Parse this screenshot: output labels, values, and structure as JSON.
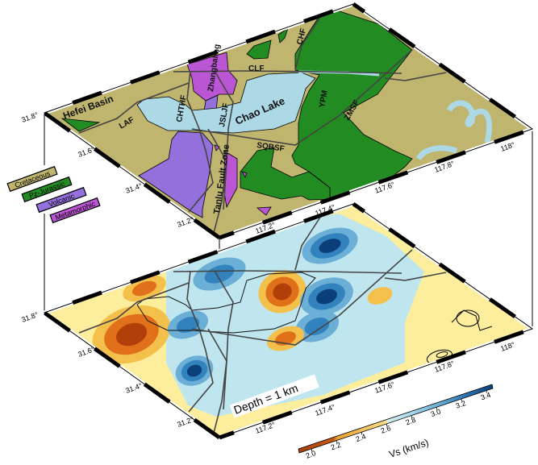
{
  "geology_map": {
    "labels": {
      "hefei_basin": "Hefei Basin",
      "laf": "LAF",
      "chthf": "CHTHF",
      "zhangbaling": "Zhangbaling",
      "jsljf": "JSLJF",
      "chao_lake": "Chao Lake",
      "clf": "CLF",
      "ypm": "YPM",
      "zmsf": "ZMSF",
      "chf": "CHF",
      "sqbsf": "SQBSF",
      "tanlu": "Tanlu Fault Zone"
    },
    "legend": [
      {
        "label": "Cretaceous",
        "color": "#bfb56e"
      },
      {
        "label": "Pz-Jurassic",
        "color": "#228b22"
      },
      {
        "label": "Volcanic",
        "color": "#9370db"
      },
      {
        "label": "Metamorphic",
        "color": "#ba55d3"
      }
    ],
    "lake_color": "#add8e6"
  },
  "axes": {
    "lat_ticks": [
      "31.2°",
      "31.4°",
      "31.6°",
      "31.8°"
    ],
    "lon_ticks": [
      "117.2°",
      "117.4°",
      "117.6°",
      "117.8°",
      "118°"
    ]
  },
  "velocity_map": {
    "depth_label": "Depth = 1 km",
    "colorbar": {
      "label": "Vs (km/s)",
      "ticks": [
        "2.0",
        "2.2",
        "2.4",
        "2.6",
        "2.8",
        "3.0",
        "3.2",
        "3.4"
      ],
      "range": [
        1.9,
        3.45
      ],
      "colors": [
        "#b03f0a",
        "#e0701a",
        "#f4c04c",
        "#fdee9d",
        "#bfe6ef",
        "#6baed6",
        "#3182bd",
        "#0b3f7a"
      ]
    }
  }
}
